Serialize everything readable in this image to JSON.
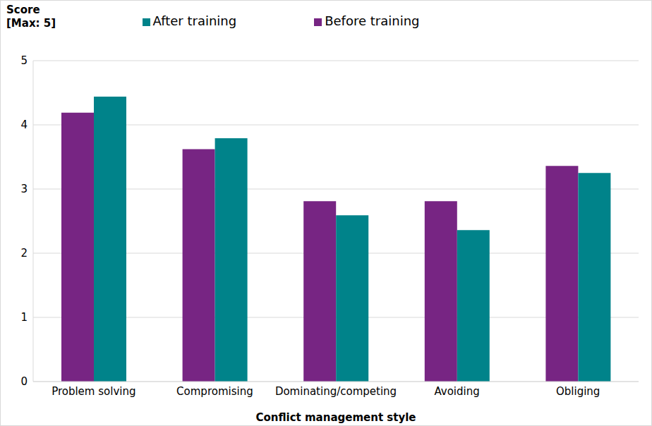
{
  "chart_data": {
    "type": "bar",
    "y_label": "Score [Max: 5]",
    "x_label": "Conflict management style",
    "categories": [
      "Problem solving",
      "Compromising",
      "Dominating/competing",
      "Avoiding",
      "Obliging"
    ],
    "series": [
      {
        "name": "Before training",
        "color": "#772583",
        "values": [
          4.19,
          3.62,
          2.81,
          2.81,
          3.36
        ]
      },
      {
        "name": "After training",
        "color": "#00838A",
        "values": [
          4.44,
          3.79,
          2.59,
          2.36,
          3.25
        ]
      }
    ],
    "ylim": [
      0,
      5
    ],
    "yticks": [
      0,
      1,
      2,
      3,
      4,
      5
    ],
    "grid": true,
    "legend": "top"
  }
}
